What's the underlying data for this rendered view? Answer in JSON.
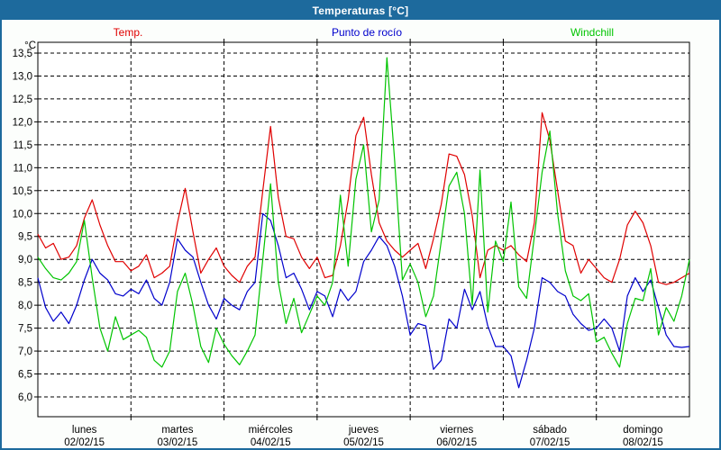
{
  "window": {
    "title": "Temperaturas [°C]"
  },
  "legend": [
    {
      "label": "Temp.",
      "color": "#e00000"
    },
    {
      "label": "Punto de rocío",
      "color": "#0000cc"
    },
    {
      "label": "Windchill",
      "color": "#00c400"
    }
  ],
  "chart_data": {
    "type": "line",
    "title": "Temperaturas [°C]",
    "grid": "dashed-black",
    "legend_position": "top",
    "y_axis": {
      "unit_label": "°C",
      "min": 6.0,
      "max": 13.5,
      "step": 0.5,
      "tick_labels": [
        "13,5",
        "13,0",
        "12,5",
        "12,0",
        "11,5",
        "11,0",
        "10,5",
        "10,0",
        "9,5",
        "9,0",
        "8,5",
        "8,0",
        "7,5",
        "7,0",
        "6,5",
        "6,0"
      ]
    },
    "x_axis": {
      "days": [
        {
          "name": "lunes",
          "date": "02/02/15"
        },
        {
          "name": "martes",
          "date": "03/02/15"
        },
        {
          "name": "miércoles",
          "date": "04/02/15"
        },
        {
          "name": "jueves",
          "date": "05/02/15"
        },
        {
          "name": "viernes",
          "date": "06/02/15"
        },
        {
          "name": "sábado",
          "date": "07/02/15"
        },
        {
          "name": "domingo",
          "date": "08/02/15"
        }
      ],
      "samples_per_day": 12
    },
    "series": [
      {
        "name": "Temp.",
        "color": "#e00000",
        "values": [
          9.55,
          9.25,
          9.35,
          9.0,
          9.05,
          9.3,
          9.9,
          10.3,
          9.75,
          9.3,
          8.95,
          8.95,
          8.75,
          8.85,
          9.1,
          8.6,
          8.7,
          8.85,
          9.8,
          10.55,
          9.6,
          8.7,
          9.0,
          9.25,
          8.85,
          8.65,
          8.5,
          8.85,
          9.05,
          10.5,
          11.9,
          10.35,
          9.5,
          9.45,
          9.05,
          8.8,
          9.05,
          8.6,
          8.65,
          9.3,
          10.3,
          11.7,
          12.1,
          10.85,
          9.8,
          9.4,
          9.2,
          9.05,
          9.2,
          9.35,
          8.8,
          9.45,
          10.2,
          11.3,
          11.25,
          10.85,
          9.95,
          8.6,
          9.2,
          9.3,
          9.2,
          9.3,
          9.1,
          8.95,
          9.8,
          12.2,
          11.6,
          10.5,
          9.4,
          9.3,
          8.7,
          9.0,
          8.8,
          8.6,
          8.5,
          9.0,
          9.75,
          10.05,
          9.8,
          9.3,
          8.5,
          8.45,
          8.5,
          8.6,
          8.7
        ]
      },
      {
        "name": "Punto de rocío",
        "color": "#0000cc",
        "values": [
          8.6,
          7.95,
          7.65,
          7.85,
          7.6,
          8.0,
          8.55,
          9.0,
          8.7,
          8.55,
          8.25,
          8.2,
          8.35,
          8.25,
          8.55,
          8.15,
          8.0,
          8.5,
          9.45,
          9.2,
          9.05,
          8.5,
          8.0,
          7.7,
          8.15,
          8.0,
          7.9,
          8.3,
          8.5,
          10.0,
          9.85,
          9.3,
          8.6,
          8.7,
          8.35,
          7.9,
          8.3,
          8.2,
          7.75,
          8.35,
          8.1,
          8.3,
          8.95,
          9.2,
          9.5,
          9.3,
          8.85,
          8.2,
          7.35,
          7.6,
          7.55,
          6.6,
          6.8,
          7.7,
          7.5,
          8.35,
          7.9,
          8.3,
          7.55,
          7.1,
          7.1,
          6.9,
          6.2,
          6.8,
          7.5,
          8.6,
          8.5,
          8.3,
          8.2,
          7.8,
          7.6,
          7.45,
          7.5,
          7.7,
          7.5,
          7.0,
          8.2,
          8.6,
          8.3,
          8.55,
          7.95,
          7.35,
          7.1,
          7.08,
          7.1
        ]
      },
      {
        "name": "Windchill",
        "color": "#00c400",
        "values": [
          9.05,
          8.8,
          8.6,
          8.55,
          8.7,
          8.95,
          9.85,
          8.6,
          7.5,
          7.0,
          7.75,
          7.25,
          7.35,
          7.45,
          7.3,
          6.8,
          6.65,
          7.0,
          8.3,
          8.7,
          8.0,
          7.1,
          6.75,
          7.5,
          7.15,
          6.9,
          6.7,
          7.0,
          7.35,
          9.0,
          10.65,
          8.5,
          7.6,
          8.15,
          7.4,
          7.8,
          8.2,
          8.0,
          8.5,
          10.4,
          8.85,
          10.75,
          11.5,
          9.6,
          10.3,
          13.4,
          11.15,
          8.55,
          8.9,
          8.5,
          7.75,
          8.2,
          9.4,
          10.6,
          10.9,
          10.0,
          8.0,
          10.95,
          7.85,
          9.4,
          8.95,
          10.25,
          8.4,
          8.15,
          9.5,
          10.9,
          11.8,
          10.0,
          8.75,
          8.2,
          8.1,
          8.25,
          7.2,
          7.3,
          6.95,
          6.65,
          7.6,
          8.15,
          8.1,
          8.8,
          7.35,
          7.95,
          7.65,
          8.2,
          9.0
        ]
      }
    ]
  }
}
